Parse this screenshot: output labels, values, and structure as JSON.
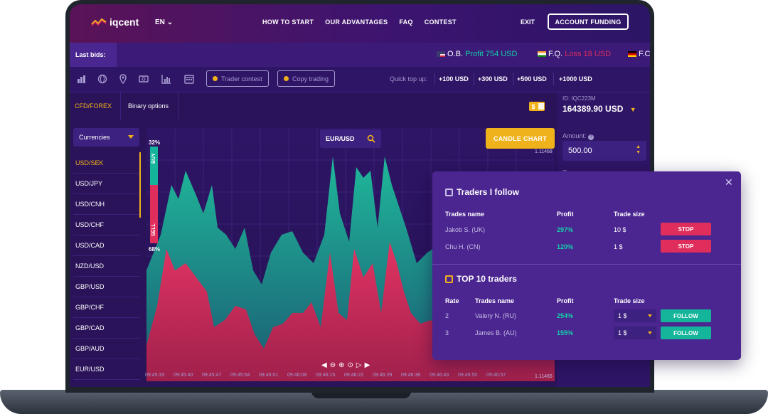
{
  "nav": {
    "logo": "iqcent",
    "lang": "EN",
    "links": [
      "HOW TO START",
      "OUR ADVANTAGES",
      "FAQ",
      "CONTEST"
    ],
    "exit": "EXIT",
    "funding": "ACCOUNT FUNDING"
  },
  "bids": {
    "label": "Last bids:",
    "items": [
      {
        "name": "O.B.",
        "kind": "Profit",
        "value": "754 USD",
        "color": "#14d0a8"
      },
      {
        "name": "F.Q.",
        "kind": "Loss",
        "value": "18 USD",
        "color": "#e02e5c"
      },
      {
        "name": "F.C",
        "kind": "",
        "value": "",
        "color": "#ffffff"
      }
    ]
  },
  "toolbar": {
    "trader_contest": "Trader contest",
    "copy_trading": "Copy trading",
    "quick_top_up": "Quick top up:",
    "amounts": [
      "+100 USD",
      "+300 USD",
      "+500 USD",
      "+1000 USD"
    ]
  },
  "tabs": {
    "cfd": "CFD/FOREX",
    "binary": "Binary options"
  },
  "account": {
    "id": "ID: IQC223M",
    "balance": "164389.90 USD",
    "amount_label": "Amount:",
    "amount_value": "500.00",
    "time_label": "Time:"
  },
  "currencies": {
    "select_label": "Currencies",
    "items": [
      "USD/SEK",
      "USD/JPY",
      "USD/CNH",
      "USD/CHF",
      "USD/CAD",
      "NZD/USD",
      "GBP/USD",
      "GBP/CHF",
      "GBP/CAD",
      "GBP/AUD",
      "EUR/USD"
    ],
    "active_index": 0
  },
  "chart": {
    "symbol": "EUR/USD",
    "candle_button": "CANDLE CHART",
    "buy_pct": "32%",
    "sell_pct": "68%",
    "buy_label": "BUY",
    "sell_label": "SELL",
    "price_top": "1.11468",
    "price_bottom": "1.11465",
    "times": [
      "09:45:33",
      "09:45:40",
      "09:45:47",
      "09:45:54",
      "09:46:01",
      "09:46:08",
      "09:46:15",
      "09:46:22",
      "09:46:29",
      "09:46:36",
      "09:46:43",
      "09:46:50",
      "09:46:57"
    ]
  },
  "popup": {
    "follow_title": "Traders I follow",
    "follow_headers": {
      "name": "Trades name",
      "profit": "Profit",
      "size": "Trade size"
    },
    "follow_rows": [
      {
        "name": "Jakob S. (UK)",
        "profit": "297%",
        "size": "10 $",
        "action": "STOP"
      },
      {
        "name": "Chu H. (CN)",
        "profit": "120%",
        "size": "1 $",
        "action": "STOP"
      }
    ],
    "top_title": "TOP 10 traders",
    "top_headers": {
      "rate": "Rate",
      "name": "Trades name",
      "profit": "Profit",
      "size": "Trade size"
    },
    "top_rows": [
      {
        "rate": "2",
        "name": "Valery N. (RU)",
        "profit": "254%",
        "size": "1 $",
        "action": "FOLLOW"
      },
      {
        "rate": "3",
        "name": "James B. (AU)",
        "profit": "155%",
        "size": "1 $",
        "action": "FOLLOW"
      }
    ]
  },
  "colors": {
    "accent": "#f0b21a",
    "buy": "#14b59a",
    "sell": "#e02e5c",
    "background": "#2a1359"
  }
}
